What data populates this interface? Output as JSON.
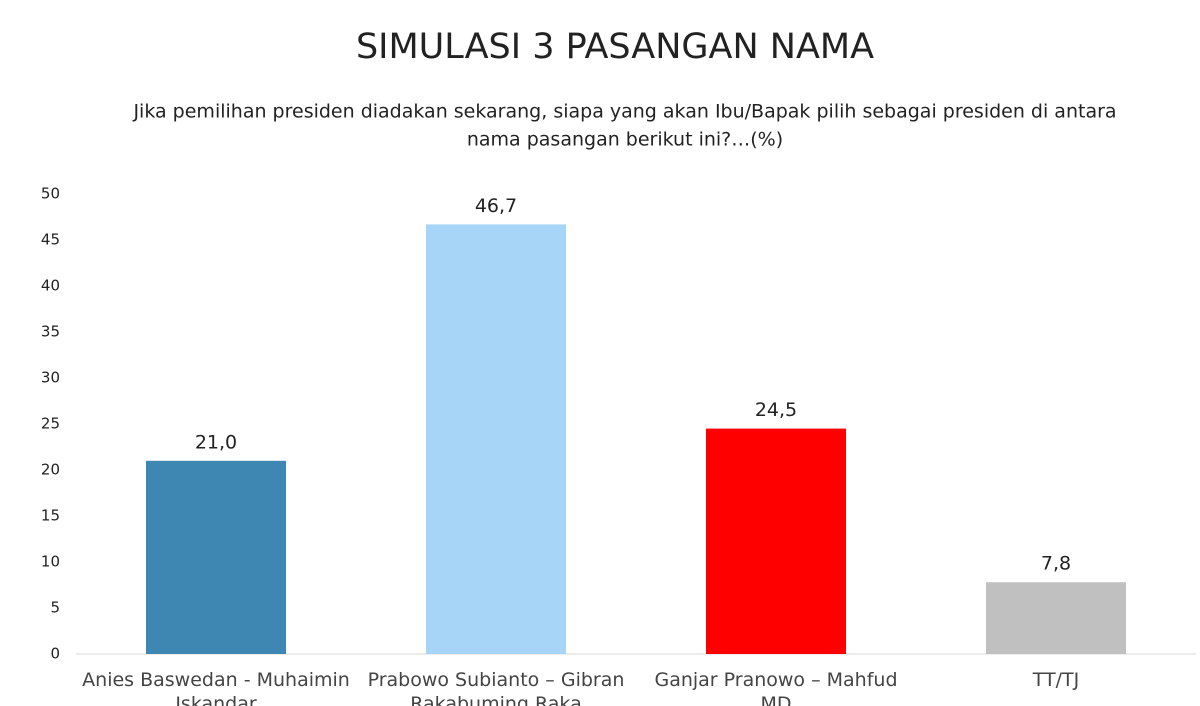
{
  "chart_data": {
    "type": "bar",
    "title": "SIMULASI 3 PASANGAN NAMA",
    "subtitle": [
      "Jika pemilihan presiden diadakan sekarang, siapa yang akan Ibu/Bapak pilih sebagai presiden di antara",
      "nama pasangan berikut ini?…(%)"
    ],
    "categories": [
      "Anies Baswedan - Muhaimin Iskandar",
      "Prabowo Subianto – Gibran Rakabuming Raka",
      "Ganjar Pranowo – Mahfud MD",
      "TT/TJ"
    ],
    "values": [
      21.0,
      46.7,
      24.5,
      7.8
    ],
    "value_labels": [
      "21,0",
      "46,7",
      "24,5",
      "7,8"
    ],
    "colors": [
      "#3e87b2",
      "#a6d5f7",
      "#ff0000",
      "#c0c0c0"
    ],
    "ylim": [
      0,
      50
    ],
    "yticks": [
      0,
      5,
      10,
      15,
      20,
      25,
      30,
      35,
      40,
      45,
      50
    ],
    "grid": false
  }
}
